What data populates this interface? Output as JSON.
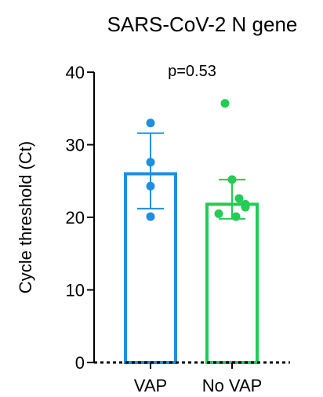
{
  "chart_data": {
    "type": "bar",
    "title": "SARS-CoV-2 N gene",
    "xlabel": "",
    "ylabel": "Cycle threshold (Ct)",
    "ylim": [
      0,
      40
    ],
    "yticks": [
      0,
      10,
      20,
      30,
      40
    ],
    "categories": [
      "VAP",
      "No VAP"
    ],
    "colors": [
      "#1f8fe0",
      "#22cc55"
    ],
    "series": [
      {
        "values": [
          26.0,
          21.8
        ],
        "error_upper": [
          31.6,
          25.2
        ],
        "error_lower": [
          21.2,
          19.8
        ]
      }
    ],
    "points": [
      [
        33.0,
        27.6,
        24.3,
        20.1
      ],
      [
        35.7,
        25.2,
        22.6,
        21.8,
        21.4,
        20.5,
        20.1
      ]
    ],
    "annotations": [
      "p=0.53"
    ],
    "grid": false,
    "legend": "none"
  }
}
